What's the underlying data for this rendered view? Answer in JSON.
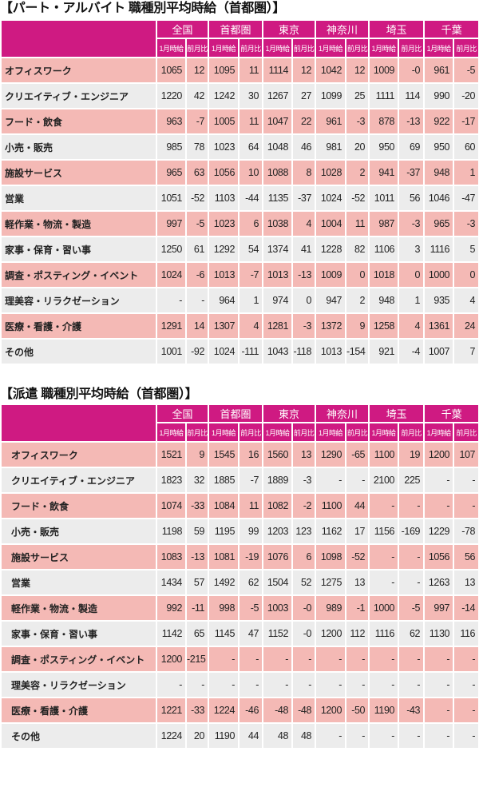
{
  "header_color": "#cf1a82",
  "row_colors": [
    "#f4b9b5",
    "#ececec"
  ],
  "regions": [
    "全国",
    "首都圏",
    "東京",
    "神奈川",
    "埼玉",
    "千葉"
  ],
  "sub_headers": [
    "1月時給",
    "前月比"
  ],
  "tables": [
    {
      "title": "【パート・アルバイト 職種別平均時給（首都圏）】",
      "rows": [
        {
          "label": "オフィスワーク",
          "values": [
            "1065",
            "12",
            "1095",
            "11",
            "1114",
            "12",
            "1042",
            "12",
            "1009",
            "-0",
            "961",
            "-5"
          ]
        },
        {
          "label": "クリエイティブ・エンジニア",
          "values": [
            "1220",
            "42",
            "1242",
            "30",
            "1267",
            "27",
            "1099",
            "25",
            "1111",
            "114",
            "990",
            "-20"
          ]
        },
        {
          "label": "フード・飲食",
          "values": [
            "963",
            "-7",
            "1005",
            "11",
            "1047",
            "22",
            "961",
            "-3",
            "878",
            "-13",
            "922",
            "-17"
          ]
        },
        {
          "label": "小売・販売",
          "values": [
            "985",
            "78",
            "1023",
            "64",
            "1048",
            "46",
            "981",
            "20",
            "950",
            "69",
            "950",
            "60"
          ]
        },
        {
          "label": "施設サービス",
          "values": [
            "965",
            "63",
            "1056",
            "10",
            "1088",
            "8",
            "1028",
            "2",
            "941",
            "-37",
            "948",
            "1"
          ]
        },
        {
          "label": "営業",
          "values": [
            "1051",
            "-52",
            "1103",
            "-44",
            "1135",
            "-37",
            "1024",
            "-52",
            "1011",
            "56",
            "1046",
            "-47"
          ]
        },
        {
          "label": "軽作業・物流・製造",
          "values": [
            "997",
            "-5",
            "1023",
            "6",
            "1038",
            "4",
            "1004",
            "11",
            "987",
            "-3",
            "965",
            "-3"
          ]
        },
        {
          "label": "家事・保育・習い事",
          "values": [
            "1250",
            "61",
            "1292",
            "54",
            "1374",
            "41",
            "1228",
            "82",
            "1106",
            "3",
            "1116",
            "5"
          ]
        },
        {
          "label": "調査・ポスティング・イベント",
          "values": [
            "1024",
            "-6",
            "1013",
            "-7",
            "1013",
            "-13",
            "1009",
            "0",
            "1018",
            "0",
            "1000",
            "0"
          ]
        },
        {
          "label": "理美容・リラクゼーション",
          "values": [
            "-",
            "-",
            "964",
            "1",
            "974",
            "0",
            "947",
            "2",
            "948",
            "1",
            "935",
            "4"
          ]
        },
        {
          "label": "医療・看護・介護",
          "values": [
            "1291",
            "14",
            "1307",
            "4",
            "1281",
            "-3",
            "1372",
            "9",
            "1258",
            "4",
            "1361",
            "24"
          ]
        },
        {
          "label": "その他",
          "values": [
            "1001",
            "-92",
            "1024",
            "-111",
            "1043",
            "-118",
            "1013",
            "-154",
            "921",
            "-4",
            "1007",
            "7"
          ]
        }
      ]
    },
    {
      "title": "【派遣 職種別平均時給（首都圏）】",
      "rows": [
        {
          "label": "オフィスワーク",
          "values": [
            "1521",
            "9",
            "1545",
            "16",
            "1560",
            "13",
            "1290",
            "-65",
            "1100",
            "19",
            "1200",
            "107"
          ]
        },
        {
          "label": "クリエイティブ・エンジニア",
          "values": [
            "1823",
            "32",
            "1885",
            "-7",
            "1889",
            "-3",
            "-",
            "-",
            "2100",
            "225",
            "-",
            "-"
          ]
        },
        {
          "label": "フード・飲食",
          "values": [
            "1074",
            "-33",
            "1084",
            "11",
            "1082",
            "-2",
            "1100",
            "44",
            "-",
            "-",
            "-",
            "-"
          ]
        },
        {
          "label": "小売・販売",
          "values": [
            "1198",
            "59",
            "1195",
            "99",
            "1203",
            "123",
            "1162",
            "17",
            "1156",
            "-169",
            "1229",
            "-78"
          ]
        },
        {
          "label": "施設サービス",
          "values": [
            "1083",
            "-13",
            "1081",
            "-19",
            "1076",
            "6",
            "1098",
            "-52",
            "-",
            "-",
            "1056",
            "56"
          ]
        },
        {
          "label": "営業",
          "values": [
            "1434",
            "57",
            "1492",
            "62",
            "1504",
            "52",
            "1275",
            "13",
            "-",
            "-",
            "1263",
            "13"
          ]
        },
        {
          "label": "軽作業・物流・製造",
          "values": [
            "992",
            "-11",
            "998",
            "-5",
            "1003",
            "-0",
            "989",
            "-1",
            "1000",
            "-5",
            "997",
            "-14"
          ]
        },
        {
          "label": "家事・保育・習い事",
          "values": [
            "1142",
            "65",
            "1145",
            "47",
            "1152",
            "-0",
            "1200",
            "112",
            "1116",
            "62",
            "1130",
            "116"
          ]
        },
        {
          "label": "調査・ポスティング・イベント",
          "values": [
            "1200",
            "-215",
            "-",
            "-",
            "-",
            "-",
            "-",
            "-",
            "-",
            "-",
            "-",
            "-"
          ]
        },
        {
          "label": "理美容・リラクゼーション",
          "values": [
            "-",
            "-",
            "-",
            "-",
            "-",
            "-",
            "-",
            "-",
            "-",
            "-",
            "-",
            "-"
          ]
        },
        {
          "label": "医療・看護・介護",
          "values": [
            "1221",
            "-33",
            "1224",
            "-46",
            "-48",
            "-48",
            "1200",
            "-50",
            "1190",
            "-43",
            "-",
            "-"
          ]
        },
        {
          "label": "その他",
          "values": [
            "1224",
            "20",
            "1190",
            "44",
            "48",
            "48",
            "-",
            "-",
            "-",
            "-",
            "-",
            "-"
          ]
        }
      ]
    }
  ]
}
